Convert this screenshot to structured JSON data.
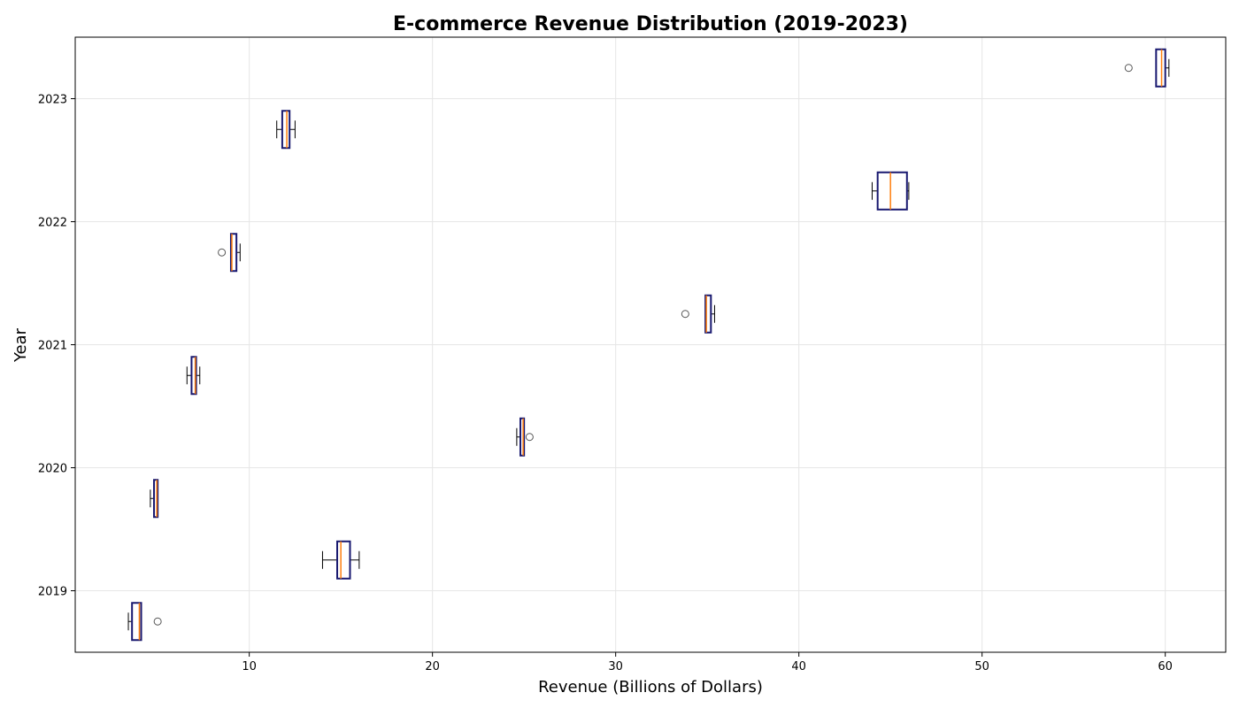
{
  "chart_data": {
    "type": "boxplot",
    "orientation": "horizontal",
    "title": "E-commerce Revenue Distribution (2019-2023)",
    "xlabel": "Revenue (Billions of Dollars)",
    "ylabel": "Year",
    "xlim": [
      0.5,
      63.3
    ],
    "ylim": [
      2018.5,
      2023.5
    ],
    "xticks": [
      10,
      20,
      30,
      40,
      50,
      60
    ],
    "yticks": [
      2019,
      2020,
      2021,
      2022,
      2023
    ],
    "grid": true,
    "colors": {
      "box_edge": "#191970",
      "median": "#ff7f0e",
      "whisker": "#000000",
      "flier": "#555555",
      "grid": "#e6e6e6"
    },
    "boxes": [
      {
        "position": 2018.75,
        "whislo": 3.4,
        "q1": 3.6,
        "med": 4.0,
        "q3": 4.1,
        "whishi": 4.1,
        "fliers": [
          5.0
        ]
      },
      {
        "position": 2019.25,
        "whislo": 14.0,
        "q1": 14.8,
        "med": 15.0,
        "q3": 15.5,
        "whishi": 16.0,
        "fliers": []
      },
      {
        "position": 2019.75,
        "whislo": 4.6,
        "q1": 4.8,
        "med": 4.95,
        "q3": 5.0,
        "whishi": 5.0,
        "fliers": []
      },
      {
        "position": 2020.25,
        "whislo": 24.6,
        "q1": 24.8,
        "med": 24.95,
        "q3": 25.0,
        "whishi": 25.0,
        "fliers": [
          25.3
        ]
      },
      {
        "position": 2020.75,
        "whislo": 6.6,
        "q1": 6.85,
        "med": 7.05,
        "q3": 7.1,
        "whishi": 7.3,
        "fliers": []
      },
      {
        "position": 2021.25,
        "whislo": 34.9,
        "q1": 34.9,
        "med": 34.95,
        "q3": 35.2,
        "whishi": 35.4,
        "fliers": [
          33.8
        ]
      },
      {
        "position": 2021.75,
        "whislo": 9.0,
        "q1": 9.0,
        "med": 9.05,
        "q3": 9.3,
        "whishi": 9.5,
        "fliers": [
          8.5
        ]
      },
      {
        "position": 2022.25,
        "whislo": 44.0,
        "q1": 44.3,
        "med": 45.0,
        "q3": 45.9,
        "whishi": 46.0,
        "fliers": []
      },
      {
        "position": 2022.75,
        "whislo": 11.5,
        "q1": 11.8,
        "med": 12.05,
        "q3": 12.2,
        "whishi": 12.5,
        "fliers": []
      },
      {
        "position": 2023.25,
        "whislo": 59.5,
        "q1": 59.5,
        "med": 59.8,
        "q3": 60.0,
        "whishi": 60.2,
        "fliers": [
          58.0
        ]
      }
    ]
  }
}
